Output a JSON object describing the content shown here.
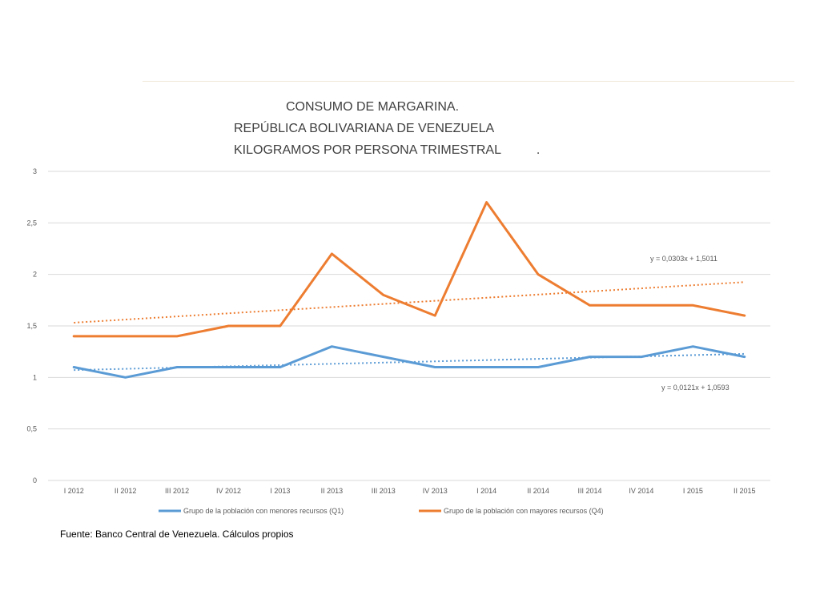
{
  "footer": {
    "source": "Fuente: Banco Central de Venezuela. Cálculos propios"
  },
  "chart_data": {
    "type": "line",
    "title_lines": [
      "CONSUMO DE MARGARINA.",
      "REPÚBLICA BOLIVARIANA DE VENEZUELA",
      "KILOGRAMOS POR PERSONA TRIMESTRAL          ."
    ],
    "categories": [
      "I 2012",
      "II 2012",
      "III 2012",
      "IV 2012",
      "I 2013",
      "II 2013",
      "III 2013",
      "IV 2013",
      "I 2014",
      "II 2014",
      "III 2014",
      "IV 2014",
      "I 2015",
      "II 2015"
    ],
    "ylim": [
      0,
      3
    ],
    "yticks": [
      "0",
      "0,5",
      "1",
      "1,5",
      "2",
      "2,5",
      "3"
    ],
    "grid": true,
    "legend_position": "bottom",
    "series": [
      {
        "name": "Grupo de la población con menores recursos (Q1)",
        "color": "#5b9bd5",
        "values": [
          1.1,
          1.0,
          1.1,
          1.1,
          1.1,
          1.3,
          1.2,
          1.1,
          1.1,
          1.1,
          1.2,
          1.2,
          1.3,
          1.2
        ],
        "trendline": {
          "slope": 0.0121,
          "intercept": 1.0593,
          "label": "y = 0,0121x + 1,0593"
        }
      },
      {
        "name": "Grupo de la población con mayores recursos (Q4)",
        "color": "#ed7d31",
        "values": [
          1.4,
          1.4,
          1.4,
          1.5,
          1.5,
          2.2,
          1.8,
          1.6,
          2.7,
          2.0,
          1.7,
          1.7,
          1.7,
          1.6
        ],
        "trendline": {
          "slope": 0.0303,
          "intercept": 1.5011,
          "label": "y = 0,0303x + 1,5011"
        }
      }
    ]
  }
}
